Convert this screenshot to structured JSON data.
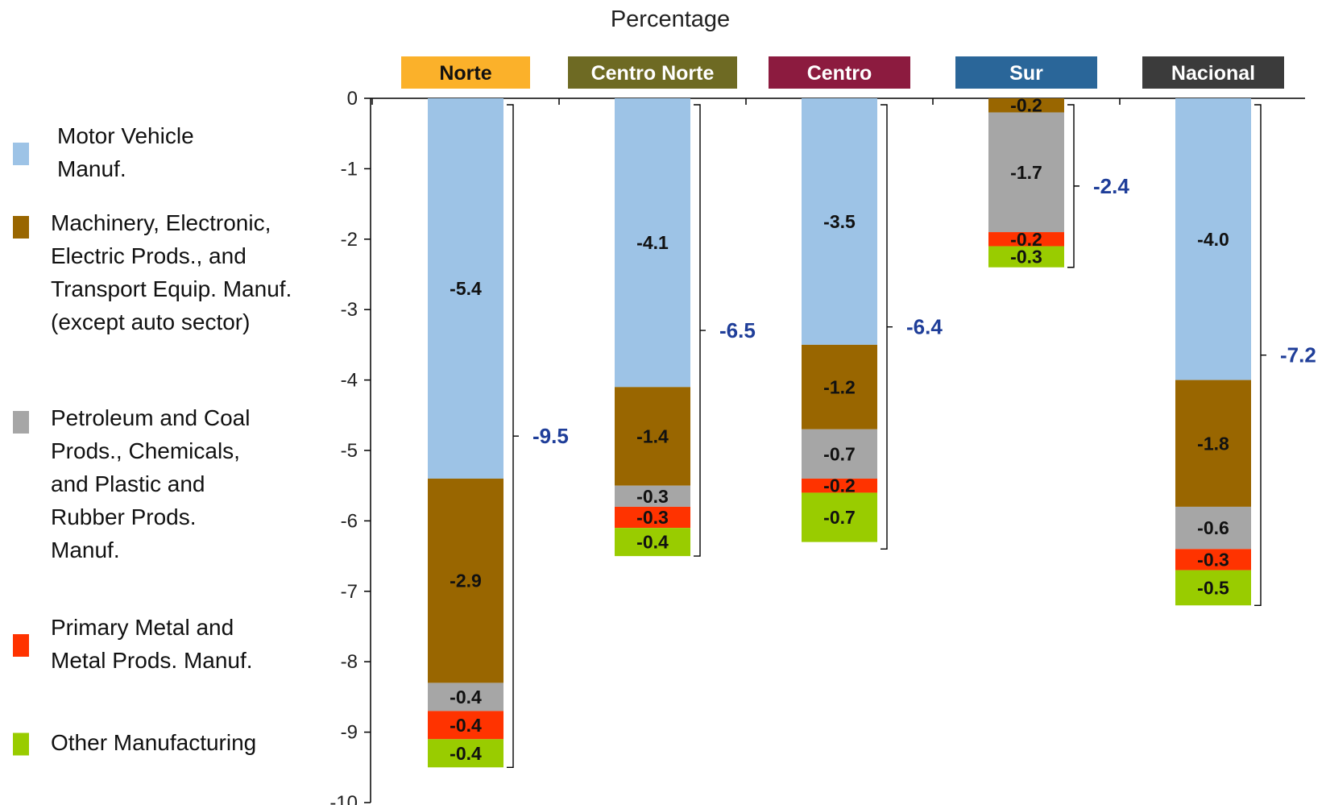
{
  "chart_data": {
    "type": "bar",
    "stacked": true,
    "title": "Percentage",
    "ylim": [
      -10,
      0
    ],
    "yticks": [
      0,
      -1,
      -2,
      -3,
      -4,
      -5,
      -6,
      -7,
      -8,
      -9,
      -10
    ],
    "grid": false,
    "legend_position": "left",
    "categories": [
      "Norte",
      "Centro Norte",
      "Centro",
      "Sur",
      "Nacional"
    ],
    "category_colors": [
      "#FBB12A",
      "#6E6A23",
      "#8C1B3F",
      "#2A6699",
      "#3B3B3B"
    ],
    "category_text_colors": [
      "#111111",
      "#ffffff",
      "#ffffff",
      "#ffffff",
      "#ffffff"
    ],
    "series": [
      {
        "name": "Motor Vehicle Manuf.",
        "name_lines": [
          "Motor Vehicle",
          "Manuf."
        ],
        "color": "#9DC3E6",
        "values": [
          -5.4,
          -4.1,
          -3.5,
          null,
          -4.0
        ]
      },
      {
        "name": "Machinery, Electronic, Electric Prods., and Transport Equip. Manuf. (except auto sector)",
        "name_lines": [
          "Machinery, Electronic,",
          "Electric Prods., and",
          "Transport Equip. Manuf.",
          "(except auto sector)"
        ],
        "color": "#996600",
        "values": [
          -2.9,
          -1.4,
          -1.2,
          -0.2,
          -1.8
        ]
      },
      {
        "name": "Petroleum and Coal Prods., Chemicals, and Plastic and Rubber Prods. Manuf.",
        "name_lines": [
          "Petroleum and Coal",
          "Prods., Chemicals,",
          "and Plastic and",
          "Rubber Prods.",
          "Manuf."
        ],
        "color": "#A6A6A6",
        "values": [
          -0.4,
          -0.3,
          -0.7,
          -1.7,
          -0.6
        ]
      },
      {
        "name": "Primary Metal and Metal Prods. Manuf.",
        "name_lines": [
          "Primary Metal and",
          "Metal Prods. Manuf."
        ],
        "color": "#FF3300",
        "values": [
          -0.4,
          -0.3,
          -0.2,
          -0.2,
          -0.3
        ]
      },
      {
        "name": "Other Manufacturing",
        "name_lines": [
          "Other Manufacturing"
        ],
        "color": "#99CC00",
        "values": [
          -0.4,
          -0.4,
          -0.7,
          -0.3,
          -0.5
        ]
      }
    ],
    "totals": [
      -9.5,
      -6.5,
      -6.4,
      -2.4,
      -7.2
    ],
    "totals_color": "#1F3E99"
  }
}
